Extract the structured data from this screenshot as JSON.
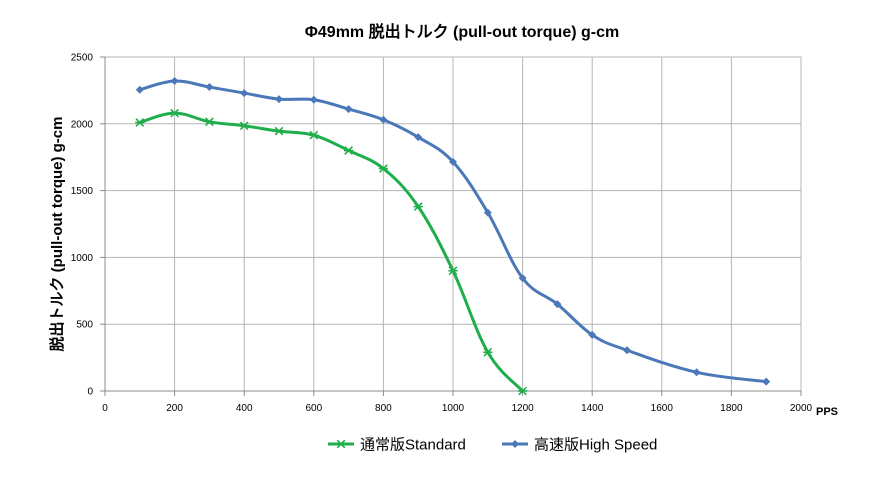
{
  "chart_data": {
    "type": "line",
    "title": "Φ49mm 脱出トルク (pull-out torque) g-cm",
    "xlabel": "PPS",
    "ylabel": "脱出トルク (pull-out torque) g-cm",
    "xlim": [
      0,
      2000
    ],
    "ylim": [
      0,
      2500
    ],
    "xticks": [
      0,
      200,
      400,
      600,
      800,
      1000,
      1200,
      1400,
      1600,
      1800,
      2000
    ],
    "yticks": [
      0,
      500,
      1000,
      1500,
      2000,
      2500
    ],
    "grid": true,
    "legend_position": "bottom",
    "series": [
      {
        "name": "通常版Standard",
        "color": "#1fae4b",
        "marker": "asterisk",
        "x": [
          100,
          200,
          300,
          400,
          500,
          600,
          700,
          800,
          900,
          1000,
          1100,
          1200
        ],
        "y": [
          2010,
          2080,
          2015,
          1985,
          1945,
          1915,
          1800,
          1665,
          1380,
          900,
          290,
          0
        ]
      },
      {
        "name": "高速版High Speed",
        "color": "#4a78b8",
        "marker": "diamond",
        "x": [
          100,
          200,
          300,
          400,
          500,
          600,
          700,
          800,
          900,
          1000,
          1100,
          1200,
          1300,
          1400,
          1500,
          1700,
          1900
        ],
        "y": [
          2255,
          2320,
          2275,
          2230,
          2185,
          2180,
          2110,
          2030,
          1900,
          1715,
          1335,
          845,
          650,
          420,
          305,
          140,
          70
        ]
      }
    ]
  }
}
